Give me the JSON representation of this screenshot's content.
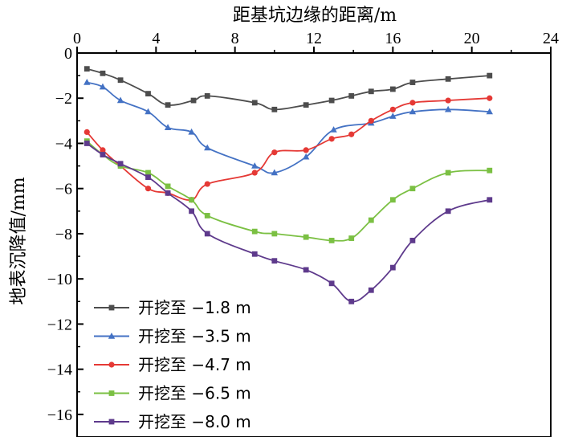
{
  "chart_data": {
    "type": "line",
    "title": "",
    "xlabel": "距基坑边缘的距离/m",
    "ylabel": "地表沉降值/mm",
    "xlim": [
      0,
      24
    ],
    "ylim": [
      -17,
      0
    ],
    "x_axis_position": "top",
    "xticks": [
      0,
      4,
      8,
      12,
      16,
      20,
      24
    ],
    "yticks": [
      0,
      -2,
      -4,
      -6,
      -8,
      -10,
      -12,
      -14,
      -16
    ],
    "grid": false,
    "legend_position": "bottom-left",
    "series": [
      {
        "name": "开挖至 −1.8 m",
        "color": "#4d4d4d",
        "marker": "square",
        "x": [
          0.5,
          1.3,
          2.2,
          3.6,
          4.6,
          5.9,
          6.6,
          9.0,
          10.0,
          11.6,
          12.9,
          13.9,
          14.9,
          16.0,
          17.0,
          18.8,
          20.9
        ],
        "y": [
          -0.7,
          -0.9,
          -1.2,
          -1.8,
          -2.3,
          -2.1,
          -1.9,
          -2.2,
          -2.5,
          -2.3,
          -2.1,
          -1.9,
          -1.7,
          -1.6,
          -1.3,
          -1.15,
          -1.0
        ]
      },
      {
        "name": "开挖至 −3.5 m",
        "color": "#4472c4",
        "marker": "triangle",
        "x": [
          0.5,
          1.3,
          2.2,
          3.6,
          4.6,
          5.8,
          6.6,
          9.0,
          10.0,
          11.6,
          13.0,
          14.9,
          16.0,
          17.0,
          18.8,
          20.9
        ],
        "y": [
          -1.3,
          -1.5,
          -2.1,
          -2.6,
          -3.3,
          -3.5,
          -4.2,
          -5.0,
          -5.3,
          -4.6,
          -3.4,
          -3.1,
          -2.8,
          -2.6,
          -2.5,
          -2.6
        ]
      },
      {
        "name": "开挖至 −4.7 m",
        "color": "#e53935",
        "marker": "circle",
        "x": [
          0.5,
          1.3,
          2.2,
          3.6,
          4.6,
          5.8,
          6.6,
          9.0,
          10.0,
          11.6,
          12.9,
          13.9,
          14.9,
          16.0,
          17.0,
          18.8,
          20.9
        ],
        "y": [
          -3.5,
          -4.3,
          -5.0,
          -6.0,
          -6.2,
          -6.5,
          -5.8,
          -5.3,
          -4.4,
          -4.3,
          -3.8,
          -3.6,
          -3.0,
          -2.5,
          -2.2,
          -2.1,
          -2.0
        ]
      },
      {
        "name": "开挖至 −6.5 m",
        "color": "#7bc043",
        "marker": "square",
        "x": [
          0.5,
          1.3,
          2.2,
          3.6,
          4.6,
          5.8,
          6.6,
          9.0,
          10.0,
          11.6,
          12.9,
          13.9,
          14.9,
          16.0,
          17.0,
          18.8,
          20.9
        ],
        "y": [
          -3.9,
          -4.5,
          -5.0,
          -5.3,
          -5.9,
          -6.5,
          -7.2,
          -7.9,
          -8.0,
          -8.15,
          -8.3,
          -8.2,
          -7.4,
          -6.5,
          -6.0,
          -5.3,
          -5.2
        ]
      },
      {
        "name": "开挖至 −8.0 m",
        "color": "#5e3a8c",
        "marker": "square",
        "x": [
          0.5,
          1.3,
          2.2,
          3.6,
          4.6,
          5.8,
          6.6,
          9.0,
          10.0,
          11.6,
          12.9,
          13.9,
          14.9,
          16.0,
          17.0,
          18.8,
          20.9
        ],
        "y": [
          -4.0,
          -4.5,
          -4.9,
          -5.5,
          -6.2,
          -7.0,
          -8.0,
          -8.9,
          -9.2,
          -9.6,
          -10.2,
          -11.0,
          -10.5,
          -9.5,
          -8.3,
          -7.0,
          -6.5
        ]
      }
    ]
  }
}
